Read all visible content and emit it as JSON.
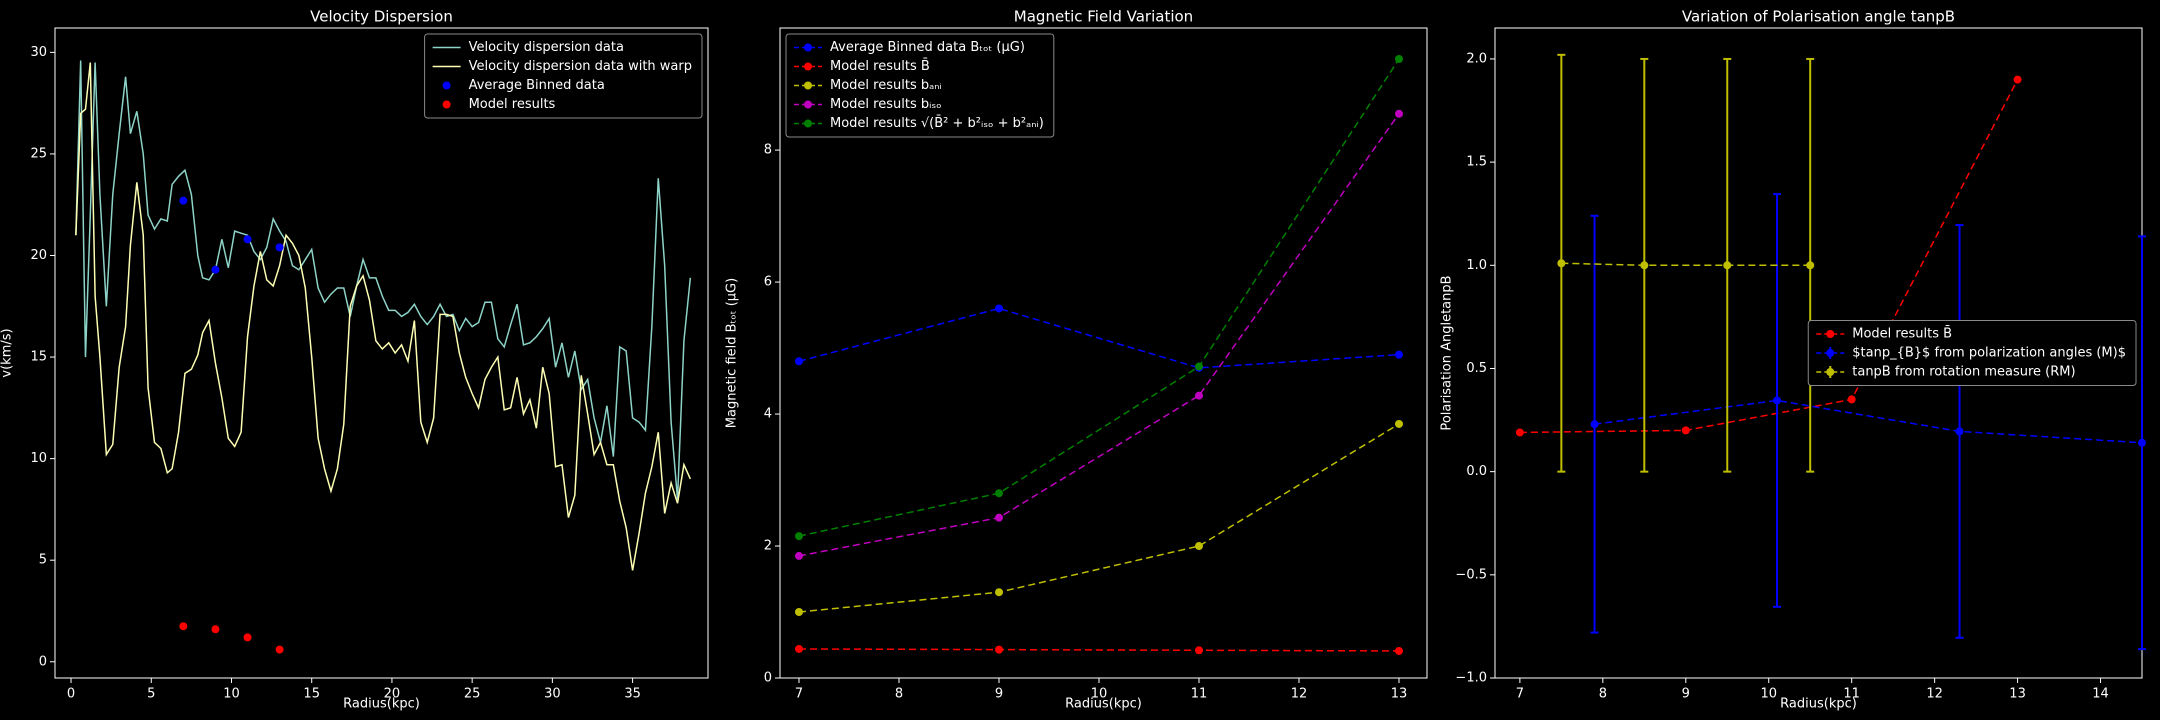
{
  "chart_data": [
    {
      "type": "line",
      "title": "Velocity Dispersion",
      "xlabel": "Radius(kpc)",
      "ylabel": "v(km/s)",
      "xlim": [
        -1.0,
        39.7
      ],
      "ylim": [
        -0.8,
        31.2
      ],
      "xticks": [
        0,
        5,
        10,
        15,
        20,
        25,
        30,
        35
      ],
      "yticks": [
        0,
        5,
        10,
        15,
        20,
        25,
        30
      ],
      "legend": "upper right",
      "series": [
        {
          "name": "Velocity dispersion data",
          "color": "#8dd3c7",
          "linestyle": "solid",
          "marker": false,
          "x": [
            0.3,
            0.6,
            0.9,
            1.2,
            1.5,
            1.8,
            2.2,
            2.6,
            3.0,
            3.4,
            3.7,
            4.1,
            4.5,
            4.8,
            5.2,
            5.6,
            6.0,
            6.3,
            6.7,
            7.1,
            7.5,
            7.9,
            8.2,
            8.6,
            9.0,
            9.4,
            9.8,
            10.2,
            10.6,
            11.0,
            11.4,
            11.8,
            12.2,
            12.6,
            13.0,
            13.4,
            13.8,
            14.2,
            14.6,
            15.0,
            15.4,
            15.8,
            16.2,
            16.6,
            17.0,
            17.4,
            17.8,
            18.2,
            18.6,
            19.0,
            19.4,
            19.8,
            20.2,
            20.6,
            21.0,
            21.4,
            21.8,
            22.2,
            22.6,
            23.0,
            23.4,
            23.8,
            24.2,
            24.6,
            25.0,
            25.4,
            25.8,
            26.2,
            26.6,
            27.0,
            27.4,
            27.8,
            28.2,
            28.6,
            29.0,
            29.4,
            29.8,
            30.2,
            30.6,
            31.0,
            31.4,
            31.8,
            32.2,
            32.6,
            33.0,
            33.4,
            33.8,
            34.2,
            34.6,
            35.0,
            35.4,
            35.8,
            36.2,
            36.6,
            37.0,
            37.4,
            37.8,
            38.2,
            38.6
          ],
          "values": [
            21,
            29.6,
            15,
            22,
            29.5,
            23,
            17.5,
            23,
            26,
            28.8,
            26,
            27.1,
            25,
            22,
            21.3,
            21.8,
            21.7,
            23.5,
            23.9,
            24.2,
            23,
            20,
            18.9,
            18.8,
            19.3,
            20.8,
            19.4,
            21.2,
            21.1,
            21.0,
            20.2,
            19.8,
            20.4,
            21.8,
            21.2,
            20.7,
            19.5,
            19.3,
            19.8,
            20.3,
            18.4,
            17.7,
            18.1,
            18.4,
            18.4,
            17.0,
            18.5,
            19.8,
            18.9,
            18.9,
            18.0,
            17.3,
            17.3,
            17.0,
            17.2,
            17.6,
            17.0,
            16.6,
            17.0,
            17.6,
            17.0,
            17.1,
            16.3,
            16.9,
            16.5,
            16.7,
            17.7,
            17.7,
            15.9,
            15.5,
            16.6,
            17.6,
            15.6,
            15.7,
            16.0,
            16.4,
            16.9,
            14.5,
            15.7,
            14.0,
            15.3,
            13.4,
            13.9,
            12.0,
            10.8,
            12.6,
            10.1,
            15.5,
            15.3,
            12.0,
            11.8,
            11.4,
            16.5,
            23.8,
            19.5,
            11.8,
            8.0,
            15.8,
            18.9
          ]
        },
        {
          "name": "Velocity dispersion data with warp",
          "color": "#feffb3",
          "linestyle": "solid",
          "marker": false,
          "x": [
            0.3,
            0.6,
            0.9,
            1.2,
            1.5,
            1.8,
            2.2,
            2.6,
            3.0,
            3.4,
            3.7,
            4.1,
            4.5,
            4.8,
            5.2,
            5.6,
            6.0,
            6.3,
            6.7,
            7.1,
            7.5,
            7.9,
            8.2,
            8.6,
            9.0,
            9.4,
            9.8,
            10.2,
            10.6,
            11.0,
            11.4,
            11.8,
            12.2,
            12.6,
            13.0,
            13.4,
            13.8,
            14.2,
            14.6,
            15.0,
            15.4,
            15.8,
            16.2,
            16.6,
            17.0,
            17.4,
            17.8,
            18.2,
            18.6,
            19.0,
            19.4,
            19.8,
            20.2,
            20.6,
            21.0,
            21.4,
            21.8,
            22.2,
            22.6,
            23.0,
            23.4,
            23.8,
            24.2,
            24.6,
            25.0,
            25.4,
            25.8,
            26.2,
            26.6,
            27.0,
            27.4,
            27.8,
            28.2,
            28.6,
            29.0,
            29.4,
            29.8,
            30.2,
            30.6,
            31.0,
            31.4,
            31.8,
            32.2,
            32.6,
            33.0,
            33.4,
            33.8,
            34.2,
            34.6,
            35.0,
            35.4,
            35.8,
            36.2,
            36.6,
            37.0,
            37.4,
            37.8,
            38.2,
            38.6
          ],
          "values": [
            21,
            27.0,
            27.2,
            29.5,
            18,
            15,
            10.2,
            10.7,
            14.5,
            16.5,
            20.5,
            23.6,
            21,
            13.5,
            10.8,
            10.5,
            9.3,
            9.5,
            11.3,
            14.2,
            14.4,
            15.1,
            16.2,
            16.8,
            14.7,
            13,
            11,
            10.6,
            11.3,
            16,
            18.5,
            20.2,
            18.8,
            18.5,
            19.5,
            21,
            20.6,
            20,
            18.4,
            15,
            11,
            9.5,
            8.4,
            9.5,
            11.7,
            17.5,
            18.5,
            19,
            17.8,
            15.8,
            15.4,
            15.7,
            15.2,
            15.6,
            14.8,
            16.8,
            11.8,
            10.8,
            12,
            17.1,
            17.1,
            17,
            15.2,
            14,
            13.2,
            12.5,
            13.9,
            14.5,
            15,
            12.4,
            12.5,
            14,
            12.2,
            12.9,
            11.5,
            14.5,
            13.2,
            9.6,
            9.7,
            7.1,
            8.2,
            14.1,
            12.2,
            10.2,
            10.8,
            9.7,
            9.7,
            7.9,
            6.6,
            4.5,
            6.3,
            8.3,
            9.6,
            11.3,
            7.3,
            8.8,
            7.8,
            9.7,
            9.0
          ]
        },
        {
          "name": "Average Binned data",
          "color": "#0000ff",
          "linestyle": "none",
          "marker": true,
          "x": [
            7,
            9,
            11,
            13
          ],
          "values": [
            22.7,
            19.3,
            20.8,
            20.4
          ]
        },
        {
          "name": "Model results",
          "color": "#ff0000",
          "linestyle": "none",
          "marker": true,
          "x": [
            7,
            9,
            11,
            13
          ],
          "values": [
            1.75,
            1.6,
            1.2,
            0.6
          ]
        }
      ]
    },
    {
      "type": "line",
      "title": "Magnetic Field Variation",
      "xlabel": "Radius(kpc)",
      "ylabel": "Magnetic field Bₜₒₜ (μG)",
      "xlim": [
        6.81,
        13.28
      ],
      "ylim": [
        0,
        9.85
      ],
      "xticks": [
        7,
        8,
        9,
        10,
        11,
        12,
        13
      ],
      "yticks": [
        0,
        2,
        4,
        6,
        8
      ],
      "legend": "upper left",
      "series": [
        {
          "name": "Average Binned data Bₜₒₜ (μG)",
          "color": "#0000ff",
          "linestyle": "dashed",
          "marker": true,
          "x": [
            7,
            9,
            11,
            13
          ],
          "values": [
            4.8,
            5.6,
            4.7,
            4.9
          ]
        },
        {
          "name": "Model results B̄",
          "color": "#ff0000",
          "linestyle": "dashed",
          "marker": true,
          "x": [
            7,
            9,
            11,
            13
          ],
          "values": [
            0.44,
            0.43,
            0.42,
            0.41
          ]
        },
        {
          "name": "Model results bₐₙᵢ",
          "color": "#bfbf00",
          "linestyle": "dashed",
          "marker": true,
          "x": [
            7,
            9,
            11,
            13
          ],
          "values": [
            1.0,
            1.3,
            2.0,
            3.85
          ]
        },
        {
          "name": "Model results bᵢₛₒ",
          "color": "#bf00bf",
          "linestyle": "dashed",
          "marker": true,
          "x": [
            7,
            9,
            11,
            13
          ],
          "values": [
            1.85,
            2.43,
            4.28,
            8.55
          ]
        },
        {
          "name": "Model results √(B̄² + b²ᵢₛₒ + b²ₐₙᵢ)",
          "color": "#008000",
          "linestyle": "dashed",
          "marker": true,
          "x": [
            7,
            9,
            11,
            13
          ],
          "values": [
            2.15,
            2.8,
            4.72,
            9.38
          ]
        }
      ]
    },
    {
      "type": "line",
      "title": "Variation of Polarisation angle tanpB",
      "xlabel": "Radius(kpc)",
      "ylabel": "Polarisation AngletanpB",
      "xlim": [
        6.7,
        14.5
      ],
      "ylim": [
        -1.0,
        2.15
      ],
      "xticks": [
        7,
        8,
        9,
        10,
        11,
        12,
        13,
        14
      ],
      "yticks": [
        {
          "value": -1.0,
          "label": "−1.0"
        },
        {
          "value": -0.5,
          "label": "−0.5"
        },
        {
          "value": 0,
          "label": "0.0"
        },
        0.5,
        {
          "value": 1,
          "label": "1.0"
        },
        1.5,
        {
          "value": 2,
          "label": "2.0"
        }
      ],
      "legend": "center right",
      "series": [
        {
          "name": "Model results B̄",
          "color": "#ff0000",
          "linestyle": "dashed",
          "marker": true,
          "x": [
            7,
            9,
            11,
            13
          ],
          "values": [
            0.19,
            0.2,
            0.35,
            1.9
          ]
        },
        {
          "name": "$tanp_{B}$ from polarization angles (M)$",
          "color": "#0000ff",
          "linestyle": "dashed",
          "marker": true,
          "x": [
            7.9,
            10.1,
            12.3,
            14.5
          ],
          "values": [
            0.23,
            0.345,
            0.195,
            0.14
          ],
          "errors": [
            1.01,
            1.0,
            1.0,
            1.0
          ]
        },
        {
          "name": "tanpB from rotation measure (RM)",
          "color": "#bfbf00",
          "linestyle": "dashed",
          "marker": true,
          "x": [
            7.5,
            8.5,
            9.5,
            10.5
          ],
          "values": [
            1.01,
            1.0,
            1.0,
            1.0
          ],
          "errors": [
            1.01,
            1.0,
            1.0,
            1.0
          ]
        }
      ]
    }
  ]
}
